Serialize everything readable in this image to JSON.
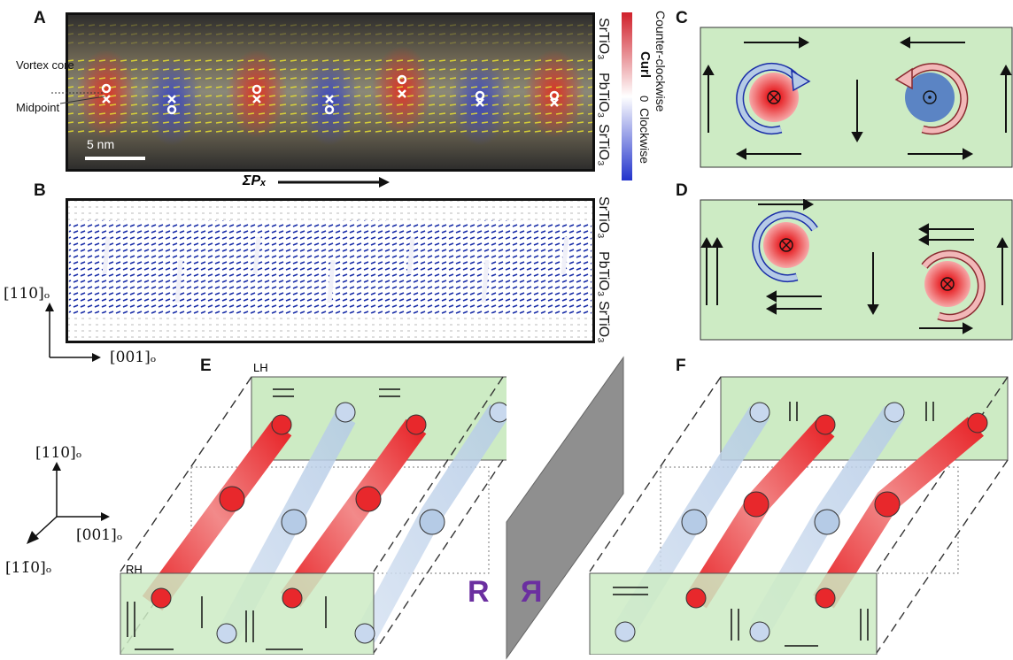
{
  "panels": {
    "A": "A",
    "B": "B",
    "C": "C",
    "D": "D",
    "E": "E",
    "F": "F"
  },
  "panel_a": {
    "layer_top": "SrTiO₃",
    "layer_mid": "PbTiO₃",
    "layer_bottom": "SrTiO₃",
    "vortex_core": "Vortex core",
    "midpoint": "Midpoint",
    "scale": "5 nm",
    "sum_px": "ΣPₓ"
  },
  "colorbar": {
    "label_pos": "Counter-clockwise",
    "label_curl": "Curl",
    "label_zero": "0",
    "label_neg": "Clockwise",
    "colors": [
      "#d0202a",
      "#ffffff",
      "#2233cc"
    ]
  },
  "panel_b": {
    "layer_top": "SrTiO₃",
    "layer_mid": "PbTiO₃",
    "layer_bottom": "SrTiO₃"
  },
  "axes_2d": {
    "y": "[110]ₒ",
    "x": "[001]ₒ"
  },
  "axes_3d": {
    "up": "[110]ₒ",
    "right": "[001]ₒ",
    "diag": "[11̄0]ₒ"
  },
  "panel_e": {
    "lh": "LH",
    "rh": "RH"
  },
  "mirror": {
    "left": "R",
    "right": "Я"
  },
  "colors": {
    "green": "#cdebc4",
    "red": "#e8282c",
    "blue": "#b5cbe6",
    "navy": "#1a2ea8"
  }
}
